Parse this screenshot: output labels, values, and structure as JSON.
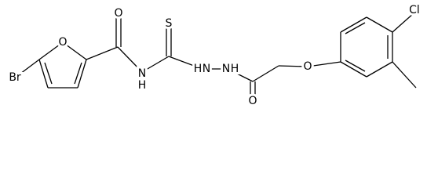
{
  "molecule": {
    "atoms": [
      {
        "label": "Br"
      },
      {
        "label": "O"
      },
      {
        "label": "O"
      },
      {
        "label": "N"
      },
      {
        "label": "H"
      },
      {
        "label": "S"
      },
      {
        "label": "H"
      },
      {
        "label": "N"
      },
      {
        "label": "N"
      },
      {
        "label": "H"
      },
      {
        "label": "O"
      },
      {
        "label": "O"
      },
      {
        "label": "Cl"
      }
    ]
  }
}
